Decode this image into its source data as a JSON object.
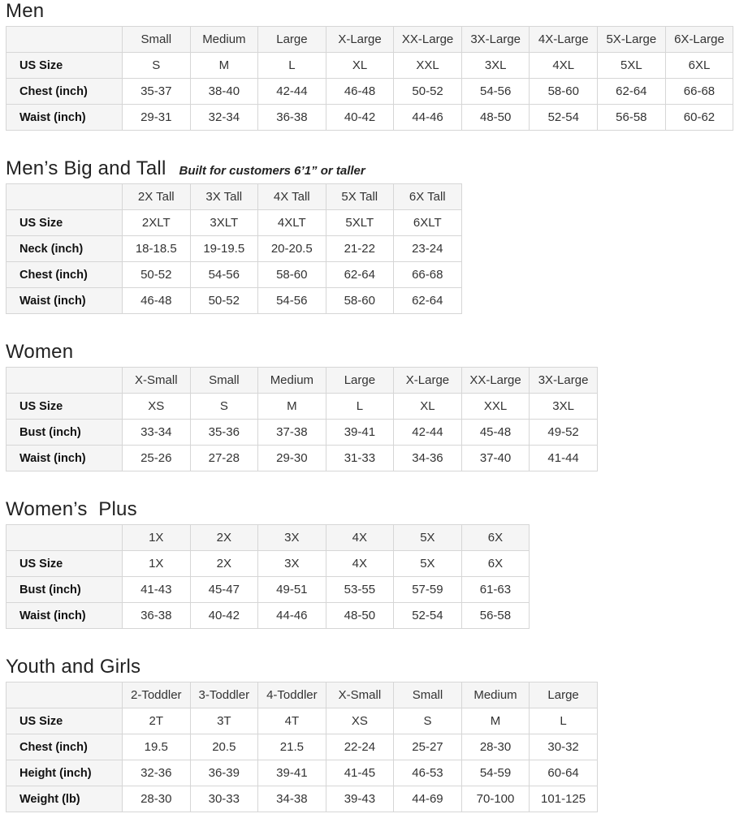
{
  "style": {
    "background": "#ffffff",
    "header_bg": "#f5f5f5",
    "border_color": "#d6d6d6",
    "text_color": "#333333",
    "title_color": "#222222"
  },
  "chart_data": [
    {
      "type": "table",
      "title": "Men",
      "subtitle": "",
      "columns": [
        "Small",
        "Medium",
        "Large",
        "X-Large",
        "XX-Large",
        "3X-Large",
        "4X-Large",
        "5X-Large",
        "6X-Large"
      ],
      "rows": [
        {
          "label": "US Size",
          "values": [
            "S",
            "M",
            "L",
            "XL",
            "XXL",
            "3XL",
            "4XL",
            "5XL",
            "6XL"
          ]
        },
        {
          "label": "Chest (inch)",
          "values": [
            "35-37",
            "38-40",
            "42-44",
            "46-48",
            "50-52",
            "54-56",
            "58-60",
            "62-64",
            "66-68"
          ]
        },
        {
          "label": "Waist (inch)",
          "values": [
            "29-31",
            "32-34",
            "36-38",
            "40-42",
            "44-46",
            "48-50",
            "52-54",
            "56-58",
            "60-62"
          ]
        }
      ]
    },
    {
      "type": "table",
      "title": "Men’s Big and Tall",
      "subtitle": "Built for customers 6’1” or taller",
      "columns": [
        "2X Tall",
        "3X Tall",
        "4X Tall",
        "5X Tall",
        "6X Tall"
      ],
      "rows": [
        {
          "label": "US Size",
          "values": [
            "2XLT",
            "3XLT",
            "4XLT",
            "5XLT",
            "6XLT"
          ]
        },
        {
          "label": "Neck (inch)",
          "values": [
            "18-18.5",
            "19-19.5",
            "20-20.5",
            "21-22",
            "23-24"
          ]
        },
        {
          "label": "Chest (inch)",
          "values": [
            "50-52",
            "54-56",
            "58-60",
            "62-64",
            "66-68"
          ]
        },
        {
          "label": "Waist (inch)",
          "values": [
            "46-48",
            "50-52",
            "54-56",
            "58-60",
            "62-64"
          ]
        }
      ]
    },
    {
      "type": "table",
      "title": "Women",
      "subtitle": "",
      "columns": [
        "X-Small",
        "Small",
        "Medium",
        "Large",
        "X-Large",
        "XX-Large",
        "3X-Large"
      ],
      "rows": [
        {
          "label": "US Size",
          "values": [
            "XS",
            "S",
            "M",
            "L",
            "XL",
            "XXL",
            "3XL"
          ]
        },
        {
          "label": "Bust (inch)",
          "values": [
            "33-34",
            "35-36",
            "37-38",
            "39-41",
            "42-44",
            "45-48",
            "49-52"
          ]
        },
        {
          "label": "Waist (inch)",
          "values": [
            "25-26",
            "27-28",
            "29-30",
            "31-33",
            "34-36",
            "37-40",
            "41-44"
          ]
        }
      ]
    },
    {
      "type": "table",
      "title": "Women’s  Plus",
      "subtitle": "",
      "columns": [
        "1X",
        "2X",
        "3X",
        "4X",
        "5X",
        "6X"
      ],
      "rows": [
        {
          "label": "US Size",
          "values": [
            "1X",
            "2X",
            "3X",
            "4X",
            "5X",
            "6X"
          ]
        },
        {
          "label": "Bust (inch)",
          "values": [
            "41-43",
            "45-47",
            "49-51",
            "53-55",
            "57-59",
            "61-63"
          ]
        },
        {
          "label": "Waist (inch)",
          "values": [
            "36-38",
            "40-42",
            "44-46",
            "48-50",
            "52-54",
            "56-58"
          ]
        }
      ]
    },
    {
      "type": "table",
      "title": "Youth and Girls",
      "subtitle": "",
      "columns": [
        "2-Toddler",
        "3-Toddler",
        "4-Toddler",
        "X-Small",
        "Small",
        "Medium",
        "Large"
      ],
      "rows": [
        {
          "label": "US Size",
          "values": [
            "2T",
            "3T",
            "4T",
            "XS",
            "S",
            "M",
            "L"
          ]
        },
        {
          "label": "Chest (inch)",
          "values": [
            "19.5",
            "20.5",
            "21.5",
            "22-24",
            "25-27",
            "28-30",
            "30-32"
          ]
        },
        {
          "label": "Height (inch)",
          "values": [
            "32-36",
            "36-39",
            "39-41",
            "41-45",
            "46-53",
            "54-59",
            "60-64"
          ]
        },
        {
          "label": "Weight (lb)",
          "values": [
            "28-30",
            "30-33",
            "34-38",
            "39-43",
            "44-69",
            "70-100",
            "101-125"
          ]
        }
      ]
    }
  ]
}
